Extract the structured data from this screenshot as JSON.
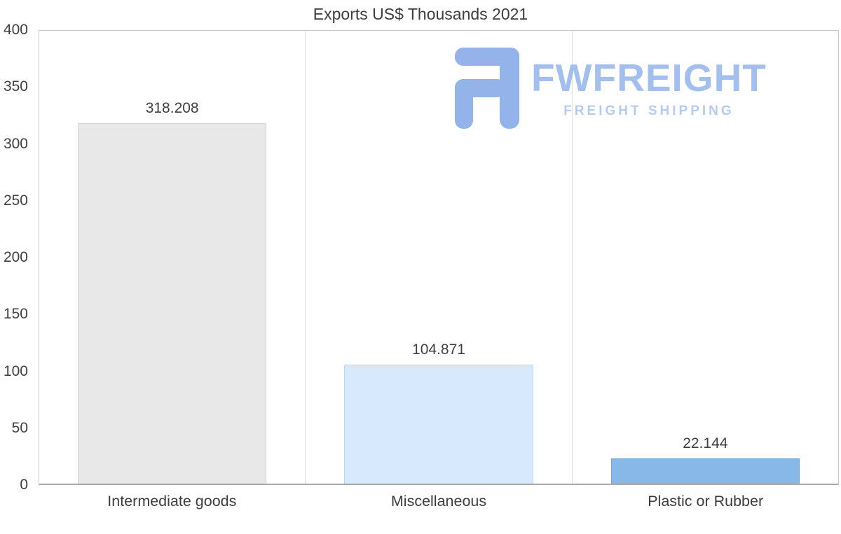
{
  "logo": {
    "name": "FWFREIGHT",
    "subtitle": "FREIGHT SHIPPING",
    "icon": "fwfreight-f-mark",
    "brand_color": "#a3bfee"
  },
  "chart_data": {
    "type": "bar",
    "title": "Exports US$ Thousands 2021",
    "categories": [
      "Intermediate goods",
      "Miscellaneous",
      "Plastic or Rubber"
    ],
    "values": [
      318.208,
      104.871,
      22.144
    ],
    "value_labels": [
      "318.208",
      "104.871",
      "22.144"
    ],
    "bar_colors": [
      "#e8e8e8",
      "#d7e9fc",
      "#88b8e8"
    ],
    "bar_border_colors": [
      "#d2d2d2",
      "#bed8f4",
      "#6fa6db"
    ],
    "xlabel": "",
    "ylabel": "",
    "ylim": [
      0,
      400
    ],
    "yticks": [
      400,
      350,
      300,
      250,
      200,
      150,
      100,
      50,
      0
    ],
    "grid": "vertical column dividers only",
    "legend": "none"
  }
}
